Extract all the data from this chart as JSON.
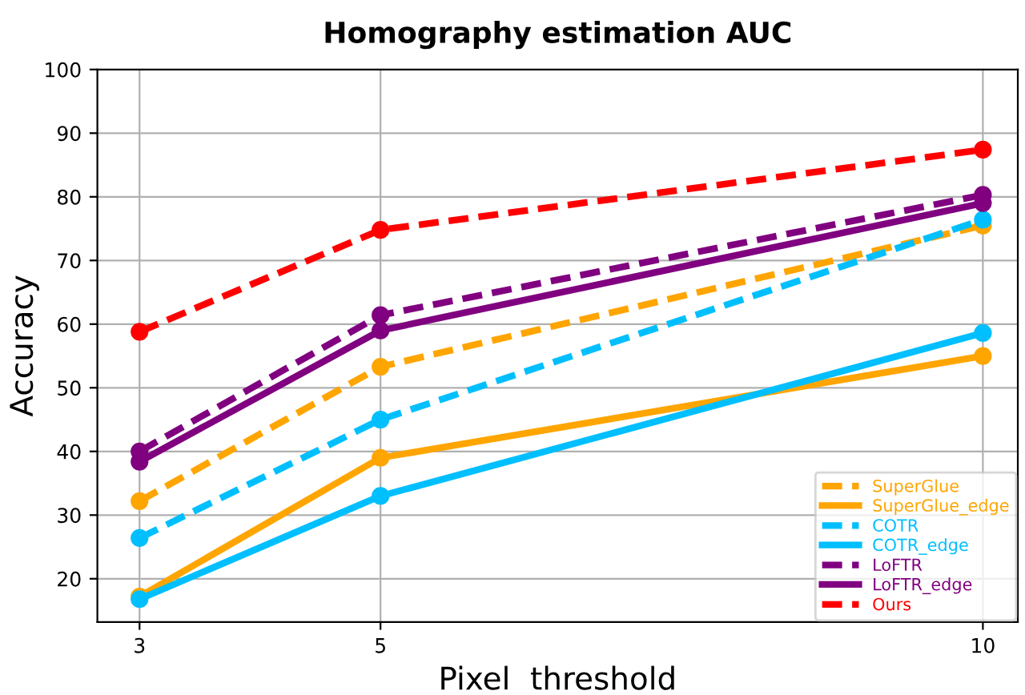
{
  "chart_data": {
    "type": "line",
    "title": "Homography estimation AUC",
    "xlabel": "Pixel  threshold",
    "ylabel": "Accuracy",
    "x": [
      3,
      5,
      10
    ],
    "xlim": [
      2.65,
      10.29
    ],
    "xticks": [
      3,
      5,
      10
    ],
    "ylim": [
      13.2,
      100
    ],
    "yticks": [
      20,
      30,
      40,
      50,
      60,
      70,
      80,
      90,
      100
    ],
    "grid": true,
    "legend": "bottom right",
    "marker": "circle",
    "series": [
      {
        "name": "SuperGlue",
        "color": "#ffa500",
        "line_style": "dashed",
        "values": [
          32.2,
          53.3,
          75.5
        ]
      },
      {
        "name": "SuperGlue_edge",
        "color": "#ffa500",
        "line_style": "solid",
        "values": [
          17.2,
          39.0,
          55.0
        ]
      },
      {
        "name": "COTR",
        "color": "#00bfff",
        "line_style": "dashed",
        "values": [
          26.4,
          45.0,
          76.4
        ]
      },
      {
        "name": "COTR_edge",
        "color": "#00bfff",
        "line_style": "solid",
        "values": [
          16.8,
          33.0,
          58.6
        ]
      },
      {
        "name": "LoFTR",
        "color": "#800080",
        "line_style": "dashed",
        "values": [
          40.0,
          61.4,
          80.3
        ]
      },
      {
        "name": "LoFTR_edge",
        "color": "#800080",
        "line_style": "solid",
        "values": [
          38.4,
          59.0,
          79.0
        ]
      },
      {
        "name": "Ours",
        "color": "#ff0000",
        "line_style": "dashed",
        "values": [
          58.8,
          74.8,
          87.4
        ]
      }
    ]
  }
}
